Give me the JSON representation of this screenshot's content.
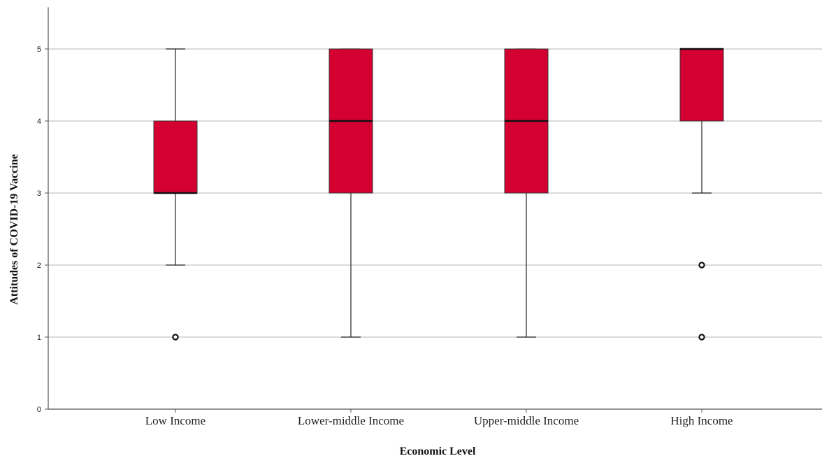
{
  "chart_data": {
    "type": "box",
    "xlabel": "Economic Level",
    "ylabel": "Attitudes of COVID-19 Vaccine",
    "ylim": [
      0,
      5.55
    ],
    "yticks": [
      0,
      1,
      2,
      3,
      4,
      5
    ],
    "grid": true,
    "box_color": "#d40032",
    "categories": [
      "Low Income",
      "Lower-middle Income",
      "Upper-middle Income",
      "High Income"
    ],
    "boxes": [
      {
        "category": "Low Income",
        "min": 2,
        "q1": 3,
        "median": 3,
        "q3": 4,
        "max": 5,
        "outliers": [
          1
        ]
      },
      {
        "category": "Lower-middle Income",
        "min": 1,
        "q1": 3,
        "median": 4,
        "q3": 5,
        "max": 5,
        "outliers": []
      },
      {
        "category": "Upper-middle Income",
        "min": 1,
        "q1": 3,
        "median": 4,
        "q3": 5,
        "max": 5,
        "outliers": []
      },
      {
        "category": "High Income",
        "min": 3,
        "q1": 4,
        "median": 5,
        "q3": 5,
        "max": 5,
        "outliers": [
          2,
          1
        ]
      }
    ]
  }
}
